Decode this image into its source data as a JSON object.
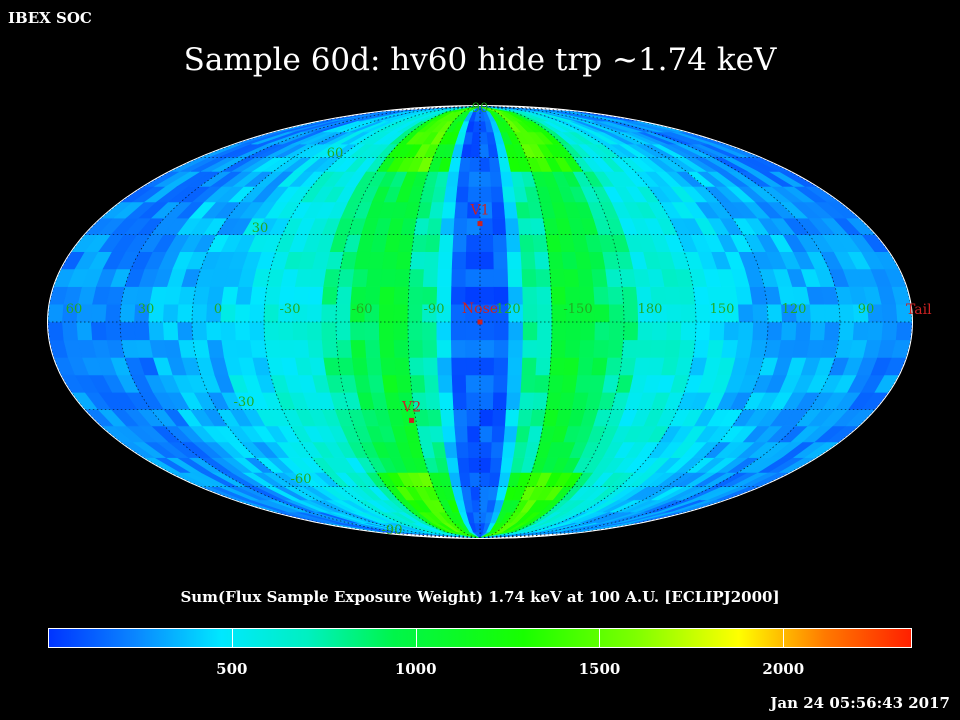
{
  "header": {
    "corner_label": "IBEX SOC",
    "title": "Sample 60d: hv60 hide trp ~1.74 keV"
  },
  "map": {
    "projection": "mollweide",
    "coordinate_frame": "ECLIPJ2000",
    "latitude_labels": [
      {
        "text": "90",
        "lat": 90
      },
      {
        "text": "60",
        "lat": 60
      },
      {
        "text": "30",
        "lat": 30
      },
      {
        "text": "-30",
        "lat": -30
      },
      {
        "text": "-60",
        "lat": -60
      },
      {
        "text": "-90",
        "lat": -90
      }
    ],
    "longitude_labels": [
      {
        "text": "60",
        "offset": -170
      },
      {
        "text": "30",
        "offset": -140
      },
      {
        "text": "0",
        "offset": -110
      },
      {
        "text": "-30",
        "offset": -80
      },
      {
        "text": "-60",
        "offset": -50
      },
      {
        "text": "-90",
        "offset": -20
      },
      {
        "text": "-120",
        "offset": 10
      },
      {
        "text": "-150",
        "offset": 40
      },
      {
        "text": "180",
        "offset": 70
      },
      {
        "text": "150",
        "offset": 100
      },
      {
        "text": "120",
        "offset": 130
      },
      {
        "text": "90",
        "offset": 160
      }
    ],
    "markers": [
      {
        "label": "V1",
        "offset": 0,
        "lat": 34
      },
      {
        "label": "Nose",
        "offset": 0,
        "lat": 0
      },
      {
        "label": "V2",
        "offset": -32,
        "lat": -34
      },
      {
        "label": "Tail",
        "offset": 180,
        "lat": 0
      }
    ],
    "marker_color": "#cc2222",
    "grid_label_color": "#22aa22"
  },
  "colorbar": {
    "caption": "Sum(Flux Sample Exposure Weight)  1.74 keV at 100 A.U. [ECLIPJ2000]",
    "min": 0,
    "max": 2350,
    "ticks": [
      {
        "text": "500",
        "value": 500
      },
      {
        "text": "1000",
        "value": 1000
      },
      {
        "text": "1500",
        "value": 1500
      },
      {
        "text": "2000",
        "value": 2000
      }
    ]
  },
  "footer": {
    "timestamp": "Jan 24 05:56:43 2017"
  }
}
